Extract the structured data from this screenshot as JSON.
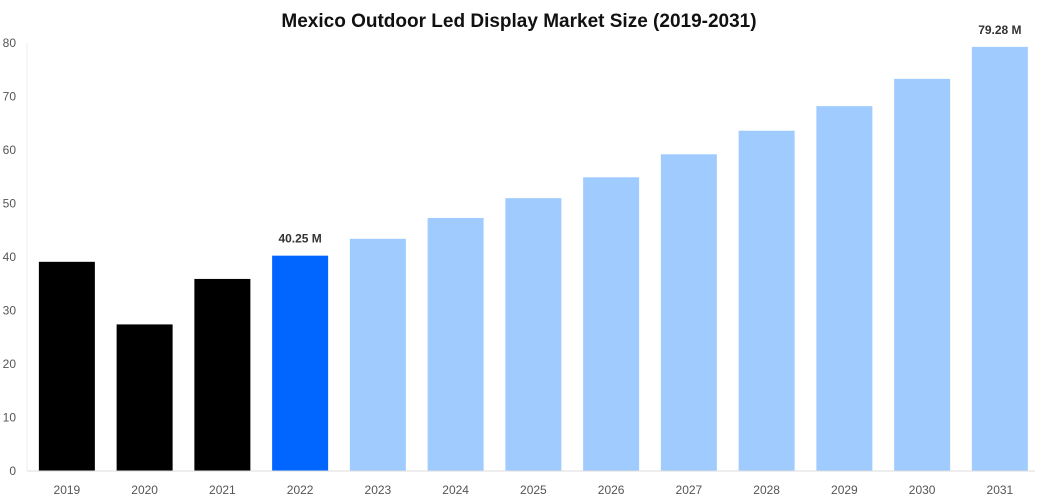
{
  "chart_data": {
    "type": "bar",
    "title": "Mexico Outdoor Led Display Market Size (2019-2031)",
    "xlabel": "",
    "ylabel": "",
    "categories": [
      "2019",
      "2020",
      "2021",
      "2022",
      "2023",
      "2024",
      "2025",
      "2026",
      "2027",
      "2028",
      "2029",
      "2030",
      "2031"
    ],
    "values": [
      39.1,
      27.4,
      35.9,
      40.25,
      43.4,
      47.3,
      51.0,
      54.9,
      59.2,
      63.6,
      68.2,
      73.3,
      79.28
    ],
    "data_labels": {
      "3": "40.25 M",
      "12": "79.28 M"
    },
    "ylim": [
      0,
      80
    ],
    "yticks": [
      0,
      10,
      20,
      30,
      40,
      50,
      60,
      70,
      80
    ],
    "grid": false,
    "legend": "none",
    "colors": {
      "historical": "#000000",
      "current": "#0066ff",
      "forecast": "#a0cbff"
    },
    "bar_color_groups": [
      "historical",
      "historical",
      "historical",
      "current",
      "forecast",
      "forecast",
      "forecast",
      "forecast",
      "forecast",
      "forecast",
      "forecast",
      "forecast",
      "forecast"
    ]
  }
}
